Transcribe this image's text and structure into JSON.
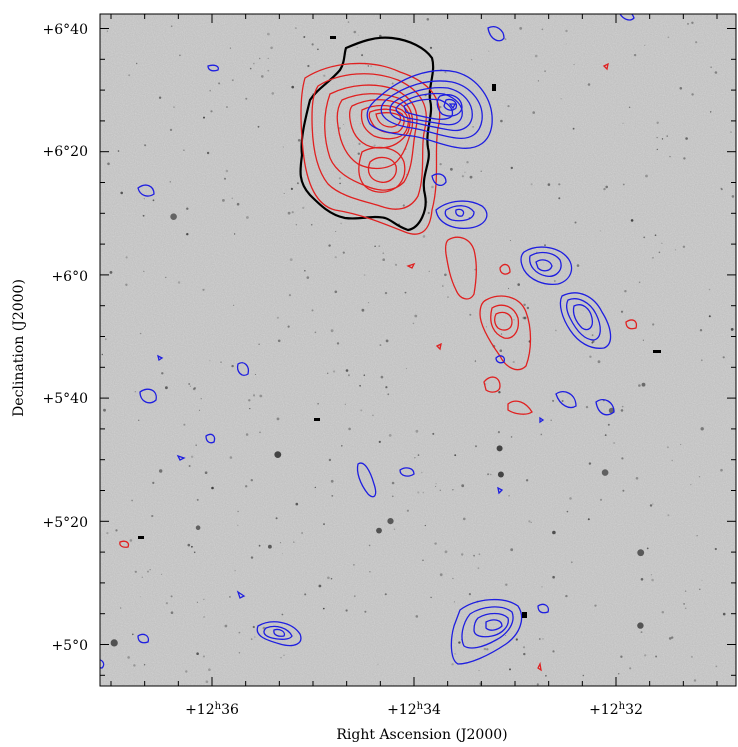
{
  "figure": {
    "x_axis_label": "Right Ascension (J2000)",
    "y_axis_label": "Declination (J2000)",
    "x_ticks": [
      {
        "h": "+12",
        "m": "36"
      },
      {
        "h": "+12",
        "m": "34"
      },
      {
        "h": "+12",
        "m": "32"
      }
    ],
    "y_ticks": [
      {
        "deg": "+6",
        "min": "40"
      },
      {
        "deg": "+6",
        "min": "20"
      },
      {
        "deg": "+6",
        "min": "0"
      },
      {
        "deg": "+5",
        "min": "40"
      },
      {
        "deg": "+5",
        "min": "20"
      },
      {
        "deg": "+5",
        "min": "0"
      }
    ],
    "contour_colors": {
      "red": "#e02020",
      "blue": "#1e1ee0",
      "black": "#000000"
    },
    "background": "grayscale optical sky image"
  }
}
